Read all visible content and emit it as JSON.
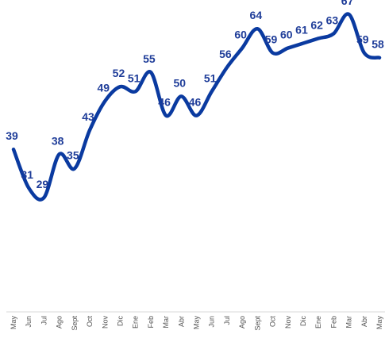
{
  "chart_data": {
    "type": "line",
    "categories": [
      "May",
      "Jun",
      "Jul",
      "Ago",
      "Sept",
      "Oct",
      "Nov",
      "Dic",
      "Ene",
      "Feb",
      "Mar",
      "Abr",
      "May",
      "Jun",
      "Jul",
      "Ago",
      "Sept",
      "Oct",
      "Nov",
      "Dic",
      "Ene",
      "Feb",
      "Mar",
      "Abr",
      "May"
    ],
    "values": [
      39,
      31,
      29,
      38,
      35,
      43,
      49,
      52,
      51,
      55,
      46,
      50,
      46,
      51,
      56,
      60,
      64,
      59,
      60,
      61,
      62,
      63,
      67,
      59,
      58
    ],
    "color": "#0a3aa0"
  }
}
